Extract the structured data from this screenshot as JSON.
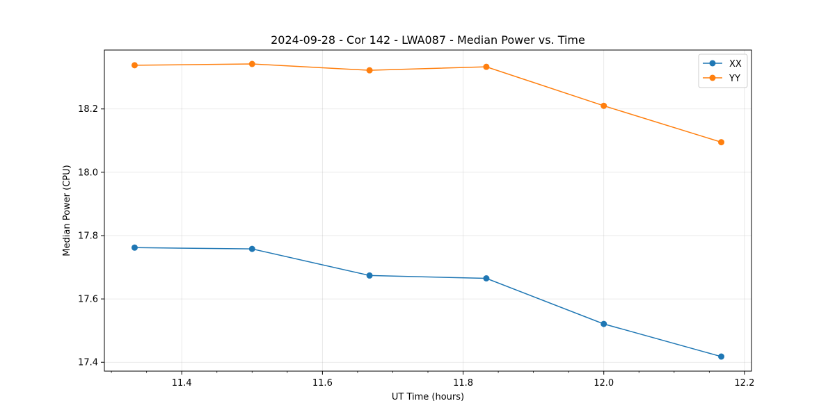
{
  "chart_data": {
    "type": "line",
    "title": "2024-09-28 - Cor 142 - LWA087 - Median Power vs. Time",
    "xlabel": "UT Time (hours)",
    "ylabel": "Median Power (CPU)",
    "xlim": [
      11.29,
      12.21
    ],
    "ylim": [
      17.372,
      18.386
    ],
    "xticks": [
      11.4,
      11.6,
      11.8,
      12.0,
      12.2
    ],
    "xtick_labels": [
      "11.4",
      "11.6",
      "11.8",
      "12.0",
      "12.2"
    ],
    "yticks": [
      17.4,
      17.6,
      17.8,
      18.0,
      18.2
    ],
    "ytick_labels": [
      "17.4",
      "17.6",
      "17.8",
      "18.0",
      "18.2"
    ],
    "grid": true,
    "legend_position": "top-right",
    "x": [
      11.333,
      11.5,
      11.667,
      11.833,
      12.0,
      12.167
    ],
    "series": [
      {
        "name": "XX",
        "color": "#1f77b4",
        "values": [
          17.762,
          17.758,
          17.674,
          17.665,
          17.521,
          17.418
        ]
      },
      {
        "name": "YY",
        "color": "#ff7f0e",
        "values": [
          18.338,
          18.342,
          18.322,
          18.333,
          18.21,
          18.095
        ]
      }
    ]
  }
}
